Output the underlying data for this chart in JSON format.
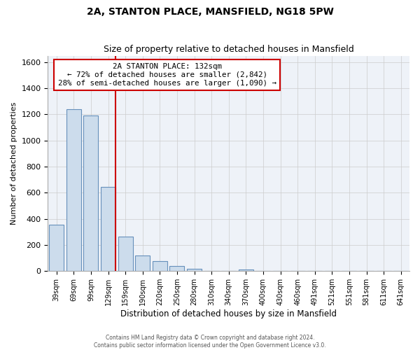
{
  "title": "2A, STANTON PLACE, MANSFIELD, NG18 5PW",
  "subtitle": "Size of property relative to detached houses in Mansfield",
  "xlabel": "Distribution of detached houses by size in Mansfield",
  "ylabel": "Number of detached properties",
  "bins": [
    "39sqm",
    "69sqm",
    "99sqm",
    "129sqm",
    "159sqm",
    "190sqm",
    "220sqm",
    "250sqm",
    "280sqm",
    "310sqm",
    "340sqm",
    "370sqm",
    "400sqm",
    "430sqm",
    "460sqm",
    "491sqm",
    "521sqm",
    "551sqm",
    "581sqm",
    "611sqm",
    "641sqm"
  ],
  "values": [
    355,
    1240,
    1190,
    645,
    265,
    120,
    75,
    40,
    20,
    0,
    0,
    15,
    0,
    0,
    0,
    0,
    0,
    0,
    0,
    0,
    0
  ],
  "bar_color": "#ccdcec",
  "bar_edge_color": "#6690bb",
  "marker_bin_index": 3,
  "marker_color": "#cc0000",
  "annotation_title": "2A STANTON PLACE: 132sqm",
  "annotation_line1": "← 72% of detached houses are smaller (2,842)",
  "annotation_line2": "28% of semi-detached houses are larger (1,090) →",
  "annotation_box_facecolor": "#ffffff",
  "annotation_box_edgecolor": "#cc0000",
  "ylim": [
    0,
    1650
  ],
  "yticks": [
    0,
    200,
    400,
    600,
    800,
    1000,
    1200,
    1400,
    1600
  ],
  "footer1": "Contains HM Land Registry data © Crown copyright and database right 2024.",
  "footer2": "Contains public sector information licensed under the Open Government Licence v3.0.",
  "bg_color": "#ffffff",
  "plot_bg_color": "#eef2f8",
  "grid_color": "#cccccc",
  "title_fontsize": 10,
  "subtitle_fontsize": 9
}
